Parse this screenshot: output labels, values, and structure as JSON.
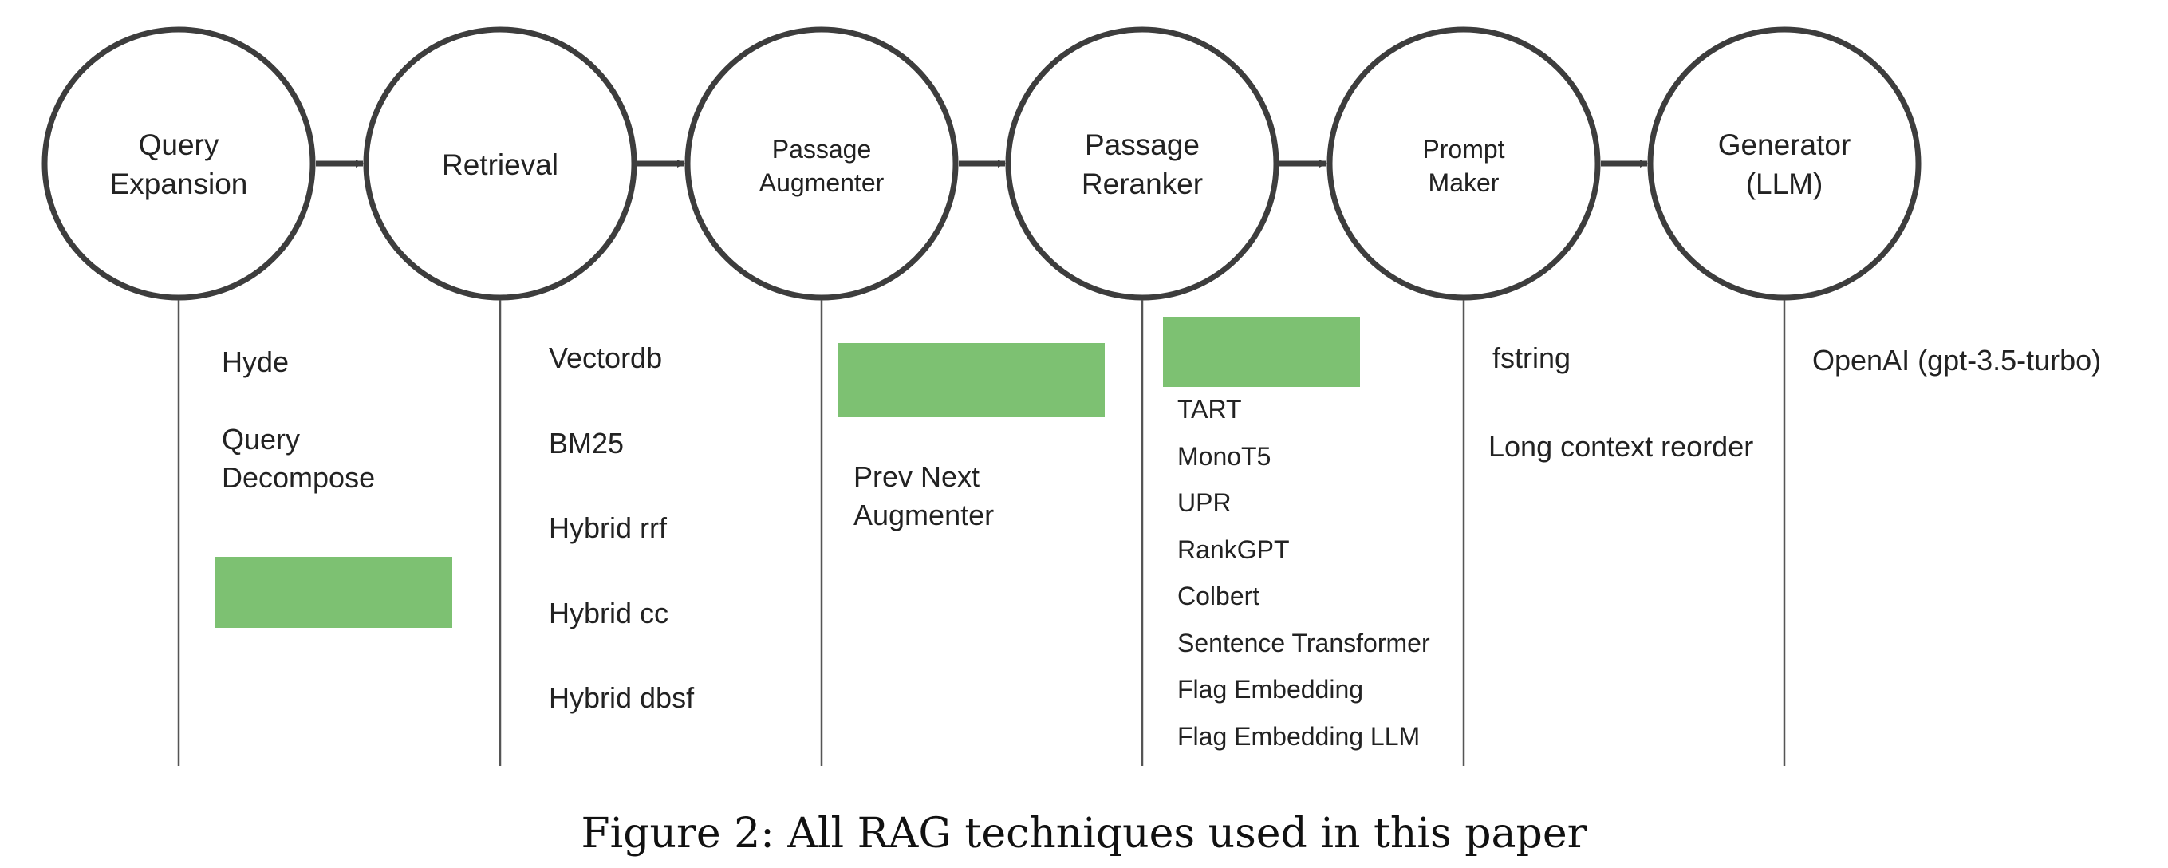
{
  "colors": {
    "stroke": "#3d3d3d",
    "redaction": "#7dc172",
    "text": "#222222"
  },
  "stages": [
    {
      "label": "Query\nExpansion",
      "techniques": [
        "Hyde",
        "Query\nDecompose"
      ],
      "redacted_entries": 1
    },
    {
      "label": "Retrieval",
      "techniques": [
        "Vectordb",
        "BM25",
        "Hybrid rrf",
        "Hybrid cc",
        "Hybrid dbsf"
      ],
      "redacted_entries": 0
    },
    {
      "label": "Passage\nAugmenter",
      "techniques": [
        "Prev Next\nAugmenter"
      ],
      "redacted_entries": 1
    },
    {
      "label": "Passage\nReranker",
      "techniques": [
        "TART",
        "MonoT5",
        "UPR",
        "RankGPT",
        "Colbert",
        "Sentence Transformer",
        "Flag Embedding",
        "Flag Embedding LLM"
      ],
      "redacted_entries": 1
    },
    {
      "label": "Prompt\nMaker",
      "techniques": [
        "fstring",
        "Long context reorder"
      ],
      "redacted_entries": 0
    },
    {
      "label": "Generator\n(LLM)",
      "techniques": [
        "OpenAI (gpt-3.5-turbo)"
      ],
      "redacted_entries": 0
    }
  ],
  "caption": "Figure 2: All RAG techniques used in this paper"
}
